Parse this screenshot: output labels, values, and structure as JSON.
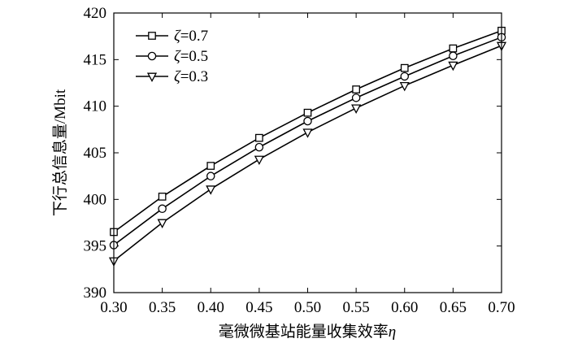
{
  "chart_data": {
    "type": "line",
    "title": "",
    "xlabel": "毫微微基站能量收集效率",
    "xlabel_symbol": "η",
    "ylabel": "下行总信息量/Mbit",
    "xlim": [
      0.3,
      0.7
    ],
    "ylim": [
      390,
      420
    ],
    "x_ticks": [
      0.3,
      0.35,
      0.4,
      0.45,
      0.5,
      0.55,
      0.6,
      0.65,
      0.7
    ],
    "x_tick_labels": [
      "0.30",
      "0.35",
      "0.40",
      "0.45",
      "0.50",
      "0.55",
      "0.60",
      "0.65",
      "0.70"
    ],
    "y_ticks": [
      390,
      395,
      400,
      405,
      410,
      415,
      420
    ],
    "y_tick_labels": [
      "390",
      "395",
      "400",
      "405",
      "410",
      "415",
      "420"
    ],
    "grid": false,
    "legend_position": "top-left",
    "x": [
      0.3,
      0.35,
      0.4,
      0.45,
      0.5,
      0.55,
      0.6,
      0.65,
      0.7
    ],
    "series": [
      {
        "name": "ζ=0.7",
        "symbol": "ζ",
        "value_label": "=0.7",
        "marker": "square",
        "values": [
          396.5,
          400.3,
          403.6,
          406.6,
          409.3,
          411.8,
          414.1,
          416.2,
          418.1
        ]
      },
      {
        "name": "ζ=0.5",
        "symbol": "ζ",
        "value_label": "=0.5",
        "marker": "circle",
        "values": [
          395.1,
          399.0,
          402.5,
          405.6,
          408.4,
          410.9,
          413.2,
          415.4,
          417.4
        ]
      },
      {
        "name": "ζ=0.3",
        "symbol": "ζ",
        "value_label": "=0.3",
        "marker": "triangle-down",
        "values": [
          393.4,
          397.5,
          401.1,
          404.3,
          407.2,
          409.8,
          412.2,
          414.4,
          416.5
        ]
      }
    ],
    "colors": {
      "line": "#000000",
      "marker_fill": "#ffffff"
    }
  }
}
